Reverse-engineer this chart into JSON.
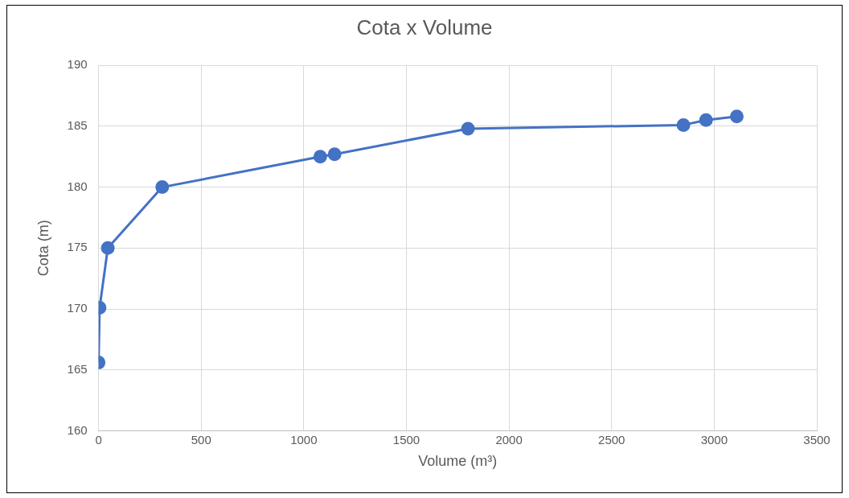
{
  "chart_data": {
    "type": "line",
    "title": "Cota x Volume",
    "xlabel": "Volume (m³)",
    "ylabel": "Cota (m)",
    "x": [
      0,
      5,
      45,
      310,
      1080,
      1150,
      1800,
      2850,
      2960,
      3110
    ],
    "series": [
      {
        "color": "#4472c4",
        "values": [
          165.6,
          170.1,
          175,
          180,
          182.5,
          182.7,
          184.8,
          185.1,
          185.5,
          185.8
        ]
      }
    ],
    "xlim": [
      0,
      3500
    ],
    "xticks": [
      0,
      500,
      1000,
      1500,
      2000,
      2500,
      3000,
      3500
    ],
    "ylim": [
      160,
      190
    ],
    "yticks": [
      160,
      165,
      170,
      175,
      180,
      185,
      190
    ],
    "grid": true,
    "legend": false,
    "marker": "circle",
    "line_style": "solid"
  }
}
